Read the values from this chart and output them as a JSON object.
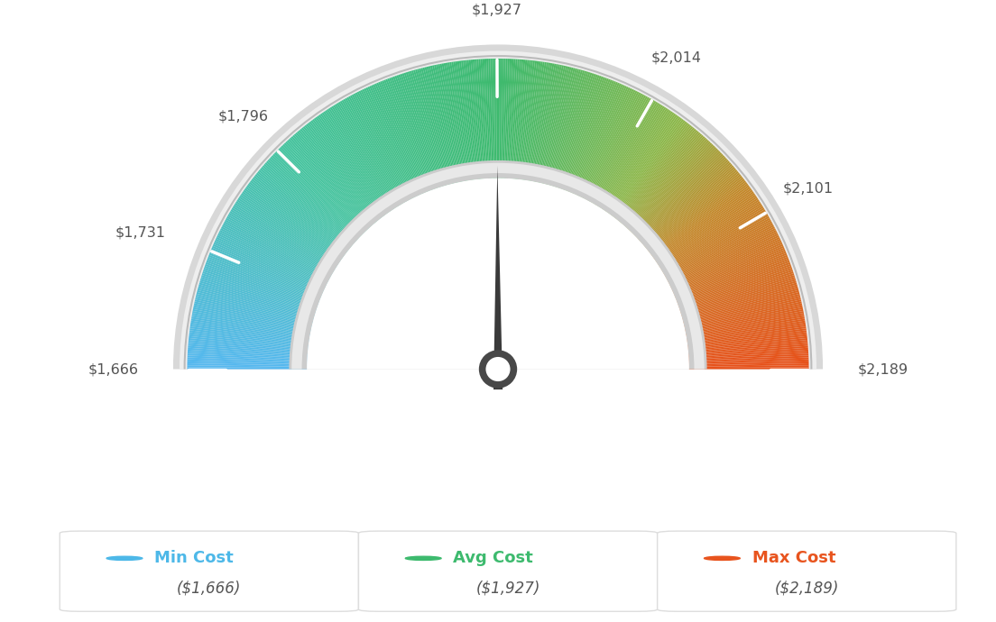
{
  "min_val": 1666,
  "avg_val": 1927,
  "max_val": 2189,
  "tick_labels": [
    "$1,666",
    "$1,731",
    "$1,796",
    "$1,927",
    "$2,014",
    "$2,101",
    "$2,189"
  ],
  "tick_values": [
    1666,
    1731,
    1796,
    1927,
    2014,
    2101,
    2189
  ],
  "legend_items": [
    {
      "label": "Min Cost",
      "value": "($1,666)",
      "color": "#4db8e8"
    },
    {
      "label": "Avg Cost",
      "value": "($1,927)",
      "color": "#3dba6e"
    },
    {
      "label": "Max Cost",
      "value": "($2,189)",
      "color": "#e8541e"
    }
  ],
  "needle_value": 1927,
  "background_color": "#ffffff",
  "color_stops": [
    [
      0.0,
      "#55b8f0"
    ],
    [
      0.25,
      "#45c4a0"
    ],
    [
      0.5,
      "#3dba6e"
    ],
    [
      0.7,
      "#8db84a"
    ],
    [
      0.8,
      "#c4882a"
    ],
    [
      1.0,
      "#e8501a"
    ]
  ]
}
